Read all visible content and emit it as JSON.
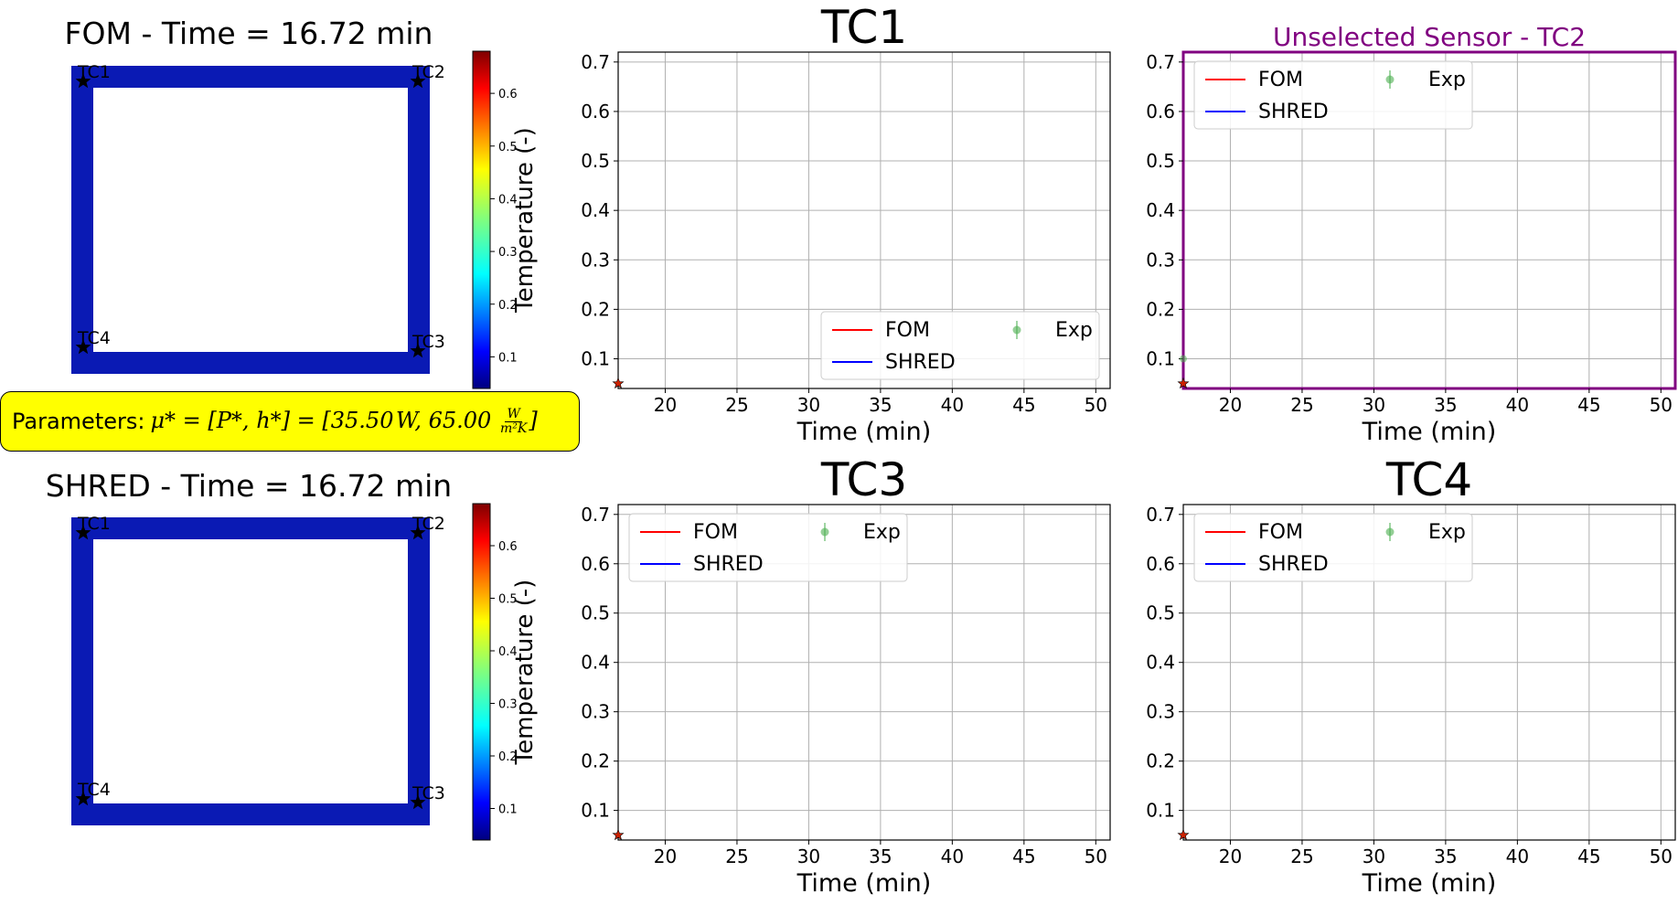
{
  "fields": [
    {
      "title": "FOM - Time = 16.72 min",
      "colorbar_label": "Temperature (-)",
      "colorbar_ticks": [
        "0.1",
        "0.2",
        "0.3",
        "0.4",
        "0.5",
        "0.6"
      ],
      "sensors": [
        "TC1",
        "TC2",
        "TC3",
        "TC4"
      ]
    },
    {
      "title": "SHRED - Time = 16.72 min",
      "colorbar_label": "Temperature (-)",
      "colorbar_ticks": [
        "0.1",
        "0.2",
        "0.3",
        "0.4",
        "0.5",
        "0.6"
      ],
      "sensors": [
        "TC1",
        "TC2",
        "TC3",
        "TC4"
      ]
    }
  ],
  "parameters": {
    "label": "Parameters:",
    "lhs": "μ* = [P*, h*] = [",
    "p_value": "35.50",
    "p_unit": "W",
    "h_value": "65.00",
    "h_unit_num": "W",
    "h_unit_den": "m²K",
    "close": "]"
  },
  "colors": {
    "fom": "#ff0000",
    "shred": "#0000ff",
    "exp": "#4caf50",
    "field_value": "#0a1ab4",
    "highlight": "#800080"
  },
  "legend": {
    "fom": "FOM",
    "shred": "SHRED",
    "exp": "Exp"
  },
  "chart_data": [
    {
      "type": "line",
      "title": "TC1",
      "xlabel": "Time (min)",
      "ylabel": "",
      "xlim": [
        16.72,
        51
      ],
      "ylim": [
        0.04,
        0.72
      ],
      "xticks": [
        20,
        25,
        30,
        35,
        40,
        45,
        50
      ],
      "yticks": [
        0.1,
        0.2,
        0.3,
        0.4,
        0.5,
        0.6,
        0.7
      ],
      "grid": true,
      "legend_position": "lower-right",
      "highlighted": false,
      "series": [
        {
          "name": "FOM",
          "x": [
            16.72
          ],
          "y": [
            0.05
          ]
        },
        {
          "name": "SHRED",
          "x": [
            16.72
          ],
          "y": [
            0.05
          ]
        },
        {
          "name": "Exp",
          "x": [],
          "y": []
        }
      ],
      "current_marker": {
        "x": 16.72,
        "y": 0.05
      }
    },
    {
      "type": "line",
      "title": "Unselected Sensor - TC2",
      "xlabel": "Time (min)",
      "ylabel": "",
      "xlim": [
        16.72,
        51
      ],
      "ylim": [
        0.04,
        0.72
      ],
      "xticks": [
        20,
        25,
        30,
        35,
        40,
        45,
        50
      ],
      "yticks": [
        0.1,
        0.2,
        0.3,
        0.4,
        0.5,
        0.6,
        0.7
      ],
      "grid": true,
      "legend_position": "upper-left",
      "highlighted": true,
      "series": [
        {
          "name": "FOM",
          "x": [
            16.72
          ],
          "y": [
            0.05
          ]
        },
        {
          "name": "SHRED",
          "x": [
            16.72
          ],
          "y": [
            0.05
          ]
        },
        {
          "name": "Exp",
          "x": [
            16.72
          ],
          "y": [
            0.1
          ]
        }
      ],
      "current_marker": {
        "x": 16.72,
        "y": 0.05
      }
    },
    {
      "type": "line",
      "title": "TC3",
      "xlabel": "Time (min)",
      "ylabel": "",
      "xlim": [
        16.72,
        51
      ],
      "ylim": [
        0.04,
        0.72
      ],
      "xticks": [
        20,
        25,
        30,
        35,
        40,
        45,
        50
      ],
      "yticks": [
        0.1,
        0.2,
        0.3,
        0.4,
        0.5,
        0.6,
        0.7
      ],
      "grid": true,
      "legend_position": "upper-left",
      "highlighted": false,
      "series": [
        {
          "name": "FOM",
          "x": [
            16.72
          ],
          "y": [
            0.05
          ]
        },
        {
          "name": "SHRED",
          "x": [
            16.72
          ],
          "y": [
            0.05
          ]
        },
        {
          "name": "Exp",
          "x": [],
          "y": []
        }
      ],
      "current_marker": {
        "x": 16.72,
        "y": 0.05
      }
    },
    {
      "type": "line",
      "title": "TC4",
      "xlabel": "Time (min)",
      "ylabel": "",
      "xlim": [
        16.72,
        51
      ],
      "ylim": [
        0.04,
        0.72
      ],
      "xticks": [
        20,
        25,
        30,
        35,
        40,
        45,
        50
      ],
      "yticks": [
        0.1,
        0.2,
        0.3,
        0.4,
        0.5,
        0.6,
        0.7
      ],
      "grid": true,
      "legend_position": "upper-left",
      "highlighted": false,
      "series": [
        {
          "name": "FOM",
          "x": [
            16.72
          ],
          "y": [
            0.05
          ]
        },
        {
          "name": "SHRED",
          "x": [
            16.72
          ],
          "y": [
            0.05
          ]
        },
        {
          "name": "Exp",
          "x": [],
          "y": []
        }
      ],
      "current_marker": {
        "x": 16.72,
        "y": 0.05
      }
    }
  ]
}
